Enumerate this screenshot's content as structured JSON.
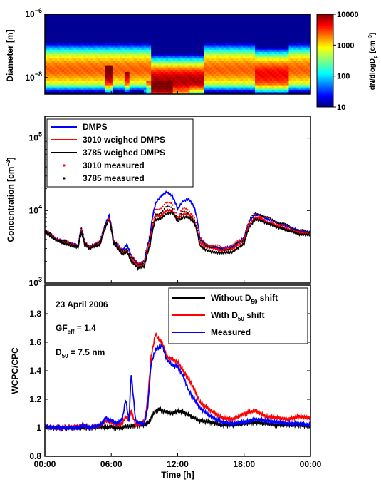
{
  "chart_data": [
    {
      "type": "heatmap",
      "ylabel": "Diameter [m]",
      "y_scale": "log",
      "ylim": [
        3e-09,
        1e-06
      ],
      "xlim": [
        0,
        24
      ],
      "y_ticks": [
        {
          "value": 1e-08,
          "base": "10",
          "exp": "−8"
        },
        {
          "value": 1e-06,
          "base": "10",
          "exp": "−6"
        }
      ],
      "colorbar": {
        "label_main": "dN/dlogD",
        "label_sub": "p",
        "label_unit": " [cm",
        "label_exp": "−3",
        "label_close": "]",
        "scale": "log",
        "range": [
          10,
          10000
        ],
        "ticks": [
          "10",
          "100",
          "1000",
          "10000"
        ],
        "colormap": "jet"
      },
      "dmps_nucleation_events": [
        {
          "time": 3.3,
          "value": 3000
        },
        {
          "time": 5.8,
          "value": 4500
        },
        {
          "time": 7.4,
          "value": 3500
        },
        {
          "time": 9.3,
          "value": 6000
        },
        {
          "time": 12.6,
          "value": 7000
        }
      ]
    },
    {
      "type": "line",
      "ylabel": "Concentration [cm",
      "ylabel_exp": "−3",
      "ylabel_close": "]",
      "y_scale": "log",
      "ylim": [
        1000,
        200000
      ],
      "xlim": [
        0,
        24
      ],
      "y_ticks": [
        {
          "value": 1000,
          "base": "10",
          "exp": "3"
        },
        {
          "value": 10000,
          "base": "10",
          "exp": "4"
        },
        {
          "value": 100000,
          "base": "10",
          "exp": "5"
        }
      ],
      "legend_position": "top-left",
      "legend": [
        {
          "label": "DMPS",
          "color": "#0000ff",
          "style": "line"
        },
        {
          "label": "3010 weighed DMPS",
          "color": "#ff0000",
          "style": "line"
        },
        {
          "label": "3785 weighed DMPS",
          "color": "#000000",
          "style": "line"
        },
        {
          "label": "3010 measured",
          "color": "#ff0000",
          "style": "dots"
        },
        {
          "label": "3785 measured",
          "color": "#000000",
          "style": "dots"
        }
      ],
      "x": [
        0,
        1,
        2,
        3,
        3.3,
        3.6,
        4,
        5,
        5.8,
        6.2,
        7,
        7.4,
        7.8,
        8.4,
        9,
        9.5,
        10,
        10.5,
        11,
        11.5,
        12,
        12.5,
        13,
        13.5,
        14,
        14.5,
        15,
        16,
        17,
        18,
        18.5,
        19,
        19.5,
        20,
        21,
        22,
        23,
        24
      ],
      "series": [
        {
          "name": "DMPS",
          "color": "#0000ff",
          "values": [
            5200,
            4100,
            3600,
            3300,
            5600,
            3600,
            3200,
            3600,
            8500,
            3700,
            2800,
            3400,
            2400,
            1800,
            2000,
            4300,
            12500,
            16000,
            18000,
            16000,
            10500,
            13500,
            14500,
            11000,
            4200,
            3400,
            3200,
            3000,
            3200,
            4200,
            7200,
            8800,
            8500,
            7800,
            6800,
            6000,
            5200,
            5000
          ]
        },
        {
          "name": "3010 weighed DMPS",
          "color": "#ff0000",
          "values": [
            5100,
            4000,
            3500,
            3200,
            5200,
            3500,
            3100,
            3500,
            7800,
            3600,
            2600,
            2800,
            2100,
            1700,
            1800,
            3600,
            8500,
            8500,
            10000,
            10000,
            7500,
            9000,
            8800,
            7200,
            3600,
            3200,
            3100,
            2800,
            3000,
            3800,
            6500,
            8000,
            7800,
            7000,
            6200,
            5500,
            4900,
            4800
          ]
        },
        {
          "name": "3785 weighed DMPS",
          "color": "#000000",
          "values": [
            5000,
            3900,
            3400,
            3100,
            5000,
            3400,
            3000,
            3400,
            7500,
            3500,
            2500,
            2700,
            2000,
            1600,
            1700,
            3300,
            7500,
            7800,
            9000,
            9500,
            7000,
            8200,
            8000,
            6800,
            3300,
            2900,
            2700,
            2600,
            2700,
            3500,
            6000,
            7500,
            7300,
            6700,
            5900,
            5300,
            4700,
            4600
          ]
        },
        {
          "name": "3010 measured",
          "color": "#ff0000",
          "style": "dots",
          "values": [
            5300,
            4200,
            3700,
            3400,
            5400,
            3700,
            3300,
            3700,
            8000,
            3800,
            2900,
            3000,
            2300,
            1900,
            2100,
            4500,
            10500,
            11000,
            12500,
            12500,
            8500,
            10500,
            10000,
            8200,
            4000,
            3500,
            3400,
            3100,
            3300,
            4300,
            7500,
            9000,
            8700,
            7900,
            6900,
            6000,
            5200,
            5000
          ]
        },
        {
          "name": "3785 measured",
          "color": "#000000",
          "style": "dots",
          "values": [
            5200,
            4100,
            3600,
            3300,
            5500,
            3600,
            3200,
            3600,
            8200,
            3700,
            2800,
            3100,
            2200,
            1800,
            2000,
            4300,
            9000,
            9500,
            11000,
            11000,
            8000,
            9500,
            9000,
            7500,
            3800,
            3300,
            3200,
            2900,
            3100,
            4100,
            7200,
            9200,
            9000,
            8000,
            7000,
            6100,
            5300,
            5000
          ]
        }
      ]
    },
    {
      "type": "line",
      "ylabel": "WCPC/CPC",
      "xlabel": "Time [h]",
      "ylim": [
        0.8,
        2.0
      ],
      "xlim": [
        0,
        24
      ],
      "y_ticks": [
        "0.8",
        "1",
        "1.2",
        "1.4",
        "1.6",
        "1.8"
      ],
      "x_ticks": [
        "00:00",
        "06:00",
        "12:00",
        "18:00",
        "00:00"
      ],
      "legend_position": "top-right",
      "legend": [
        {
          "label": "Without D",
          "sub": "50",
          "suffix": " shift",
          "color": "#000000"
        },
        {
          "label": "With D",
          "sub": "50",
          "suffix": " shift",
          "color": "#ff0000"
        },
        {
          "label": "Measured",
          "sub": "",
          "suffix": "",
          "color": "#0000ff"
        }
      ],
      "annotations": {
        "date": "23 April 2006",
        "gf_main": "GF",
        "gf_sub": "eff",
        "gf_value": " = 1.4",
        "d50_main": "D",
        "d50_sub": "50",
        "d50_value": " = 7.5 nm"
      },
      "x": [
        0,
        1,
        2,
        3,
        3.5,
        4,
        5,
        5.5,
        6,
        6.5,
        7,
        7.3,
        7.6,
        7.8,
        8.2,
        8.6,
        9,
        9.3,
        9.6,
        10,
        10.3,
        10.6,
        11,
        11.5,
        12,
        12.5,
        13,
        13.5,
        14,
        15,
        16,
        17,
        18,
        19,
        20,
        21,
        22,
        23,
        24
      ],
      "series": [
        {
          "name": "Without D50 shift",
          "color": "#000000",
          "values": [
            1.0,
            1.0,
            1.0,
            1.0,
            1.0,
            1.0,
            1.01,
            1.0,
            1.01,
            1.0,
            1.0,
            1.01,
            1.01,
            1.01,
            1.02,
            1.02,
            1.02,
            1.03,
            1.07,
            1.12,
            1.13,
            1.12,
            1.11,
            1.1,
            1.12,
            1.11,
            1.09,
            1.07,
            1.05,
            1.04,
            1.02,
            1.02,
            1.03,
            1.04,
            1.03,
            1.02,
            1.02,
            1.02,
            1.01
          ]
        },
        {
          "name": "With D50 shift",
          "color": "#ff0000",
          "values": [
            1.01,
            1.0,
            1.0,
            1.01,
            1.02,
            1.0,
            1.02,
            1.05,
            1.04,
            1.02,
            1.03,
            1.08,
            1.06,
            1.12,
            1.02,
            1.03,
            1.05,
            1.2,
            1.5,
            1.66,
            1.62,
            1.6,
            1.5,
            1.48,
            1.46,
            1.4,
            1.34,
            1.27,
            1.18,
            1.12,
            1.07,
            1.06,
            1.1,
            1.12,
            1.08,
            1.07,
            1.06,
            1.08,
            1.07
          ]
        },
        {
          "name": "Measured",
          "color": "#0000ff",
          "values": [
            1.01,
            1.0,
            1.0,
            1.0,
            1.02,
            1.0,
            1.02,
            1.07,
            1.05,
            1.03,
            1.06,
            1.2,
            1.05,
            1.38,
            1.05,
            1.03,
            1.03,
            1.15,
            1.45,
            1.55,
            1.56,
            1.58,
            1.48,
            1.44,
            1.43,
            1.36,
            1.26,
            1.2,
            1.14,
            1.08,
            1.04,
            1.03,
            1.04,
            1.06,
            1.05,
            1.04,
            1.03,
            1.03,
            1.02
          ]
        }
      ]
    }
  ]
}
